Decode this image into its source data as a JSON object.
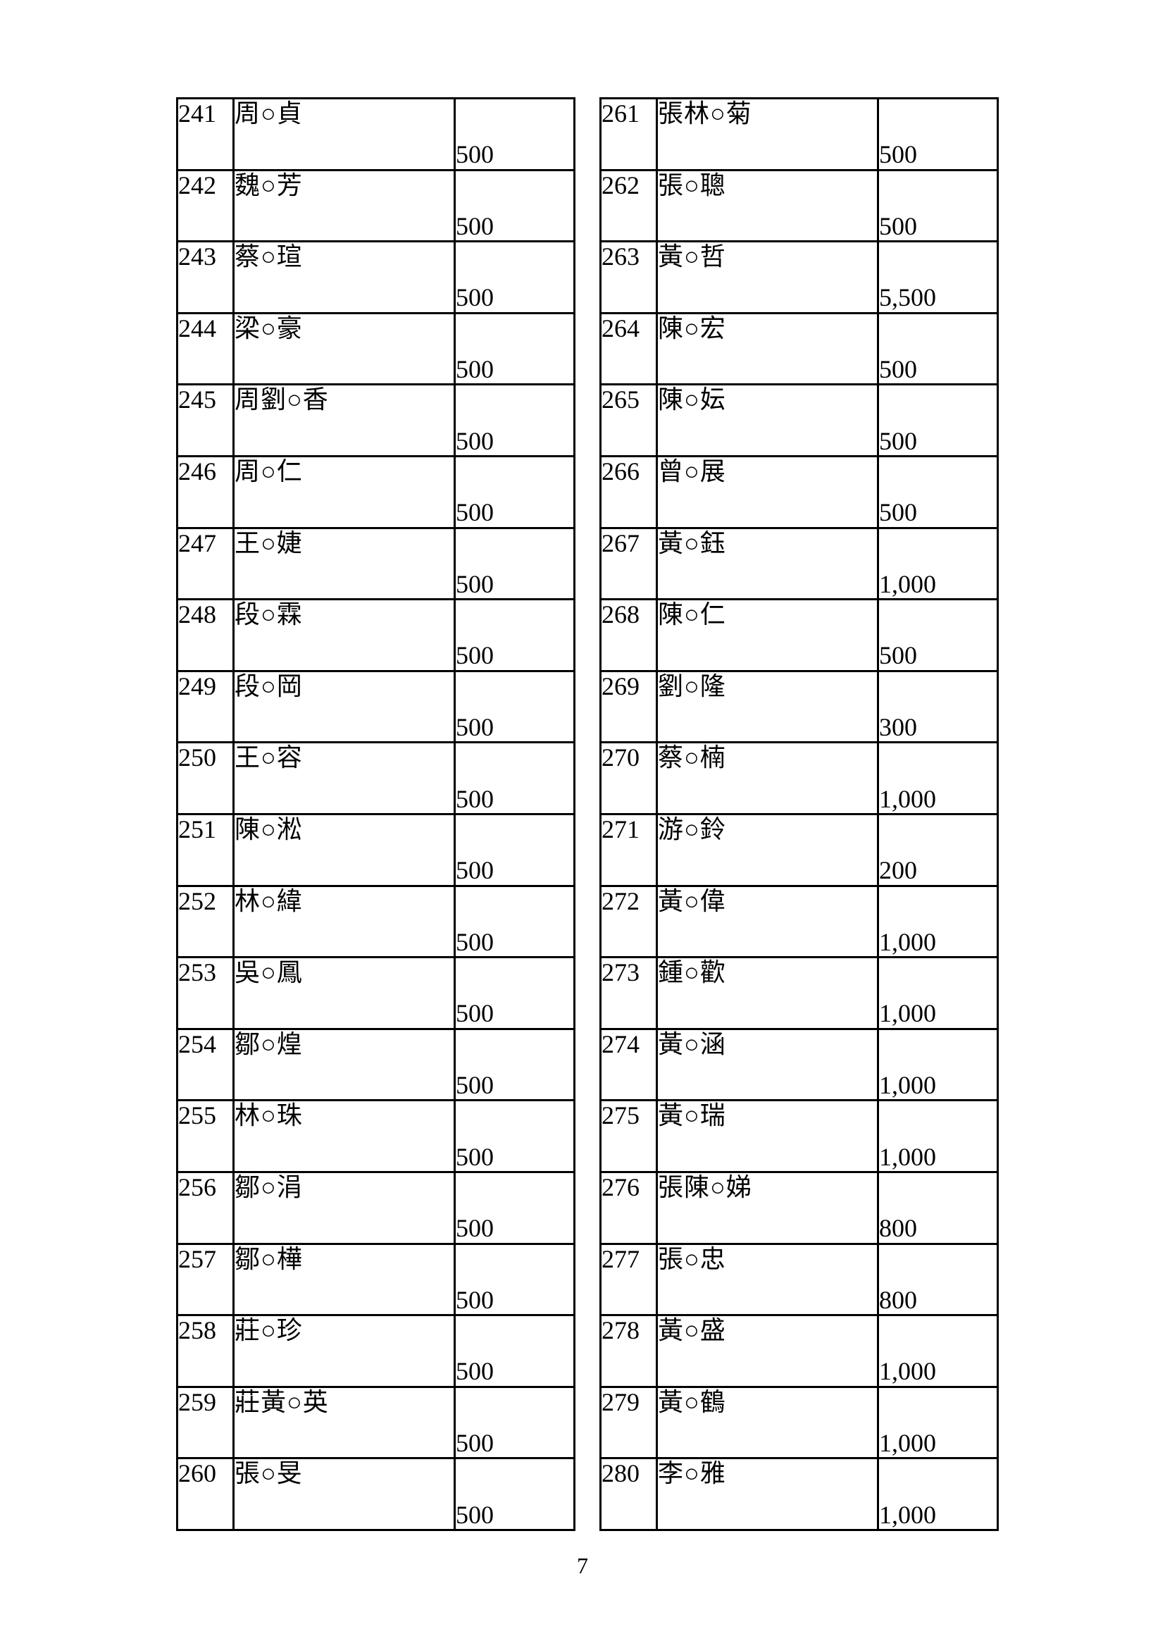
{
  "page": {
    "number": "7"
  },
  "colors": {
    "background": "#ffffff",
    "text": "#000000",
    "border": "#000000"
  },
  "left_table": {
    "rows": [
      {
        "no": "241",
        "name": "周○貞",
        "amount": "500"
      },
      {
        "no": "242",
        "name": "魏○芳",
        "amount": "500"
      },
      {
        "no": "243",
        "name": "蔡○瑄",
        "amount": "500"
      },
      {
        "no": "244",
        "name": "梁○豪",
        "amount": "500"
      },
      {
        "no": "245",
        "name": "周劉○香",
        "amount": "500"
      },
      {
        "no": "246",
        "name": "周○仁",
        "amount": "500"
      },
      {
        "no": "247",
        "name": "王○婕",
        "amount": "500"
      },
      {
        "no": "248",
        "name": "段○霖",
        "amount": "500"
      },
      {
        "no": "249",
        "name": "段○岡",
        "amount": "500"
      },
      {
        "no": "250",
        "name": "王○容",
        "amount": "500"
      },
      {
        "no": "251",
        "name": "陳○淞",
        "amount": "500"
      },
      {
        "no": "252",
        "name": "林○緯",
        "amount": "500"
      },
      {
        "no": "253",
        "name": "吳○鳳",
        "amount": "500"
      },
      {
        "no": "254",
        "name": "鄒○煌",
        "amount": "500"
      },
      {
        "no": "255",
        "name": "林○珠",
        "amount": "500"
      },
      {
        "no": "256",
        "name": "鄒○涓",
        "amount": "500"
      },
      {
        "no": "257",
        "name": "鄒○樺",
        "amount": "500"
      },
      {
        "no": "258",
        "name": "莊○珍",
        "amount": "500"
      },
      {
        "no": "259",
        "name": "莊黃○英",
        "amount": "500"
      },
      {
        "no": "260",
        "name": "張○旻",
        "amount": "500"
      }
    ]
  },
  "right_table": {
    "rows": [
      {
        "no": "261",
        "name": "張林○菊",
        "amount": "500"
      },
      {
        "no": "262",
        "name": "張○聰",
        "amount": "500"
      },
      {
        "no": "263",
        "name": "黃○哲",
        "amount": "5,500"
      },
      {
        "no": "264",
        "name": "陳○宏",
        "amount": "500"
      },
      {
        "no": "265",
        "name": "陳○妘",
        "amount": "500"
      },
      {
        "no": "266",
        "name": "曾○展",
        "amount": "500"
      },
      {
        "no": "267",
        "name": "黃○鈺",
        "amount": "1,000"
      },
      {
        "no": "268",
        "name": "陳○仁",
        "amount": "500"
      },
      {
        "no": "269",
        "name": "劉○隆",
        "amount": "300"
      },
      {
        "no": "270",
        "name": "蔡○楠",
        "amount": "1,000"
      },
      {
        "no": "271",
        "name": "游○鈴",
        "amount": "200"
      },
      {
        "no": "272",
        "name": "黃○偉",
        "amount": "1,000"
      },
      {
        "no": "273",
        "name": "鍾○歡",
        "amount": "1,000"
      },
      {
        "no": "274",
        "name": "黃○涵",
        "amount": "1,000"
      },
      {
        "no": "275",
        "name": "黃○瑞",
        "amount": "1,000"
      },
      {
        "no": "276",
        "name": "張陳○娣",
        "amount": "800"
      },
      {
        "no": "277",
        "name": "張○忠",
        "amount": "800"
      },
      {
        "no": "278",
        "name": "黃○盛",
        "amount": "1,000"
      },
      {
        "no": "279",
        "name": "黃○鶴",
        "amount": "1,000"
      },
      {
        "no": "280",
        "name": "李○雅",
        "amount": "1,000"
      }
    ]
  }
}
